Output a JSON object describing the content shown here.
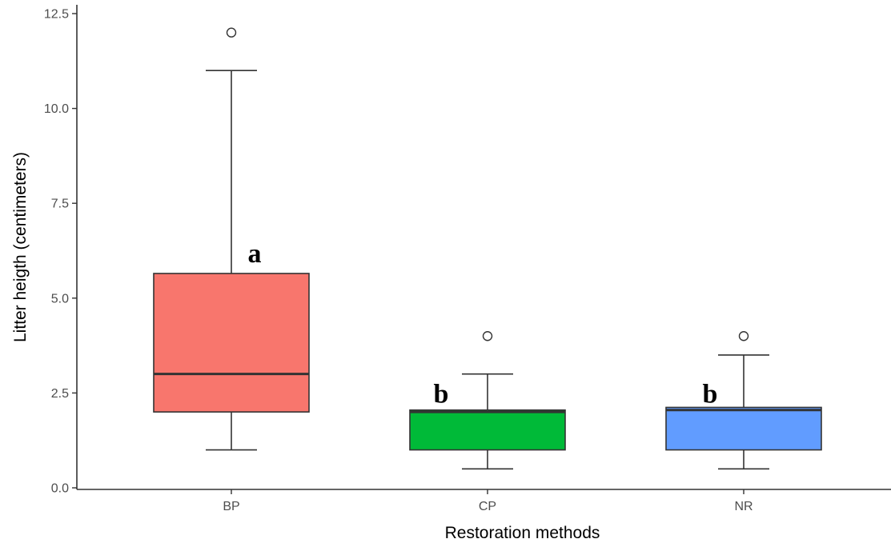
{
  "chart_data": {
    "type": "box",
    "xlabel": "Restoration methods",
    "ylabel": "Litter heigth (centimeters)",
    "ylim": [
      0,
      12.5
    ],
    "yticks": [
      "0.0",
      "2.5",
      "5.0",
      "7.5",
      "10.0",
      "12.5"
    ],
    "grid": false,
    "legend": "none",
    "categories": [
      "BP",
      "CP",
      "NR"
    ],
    "boxes": [
      {
        "category": "BP",
        "min": 1.0,
        "q1": 2.0,
        "median": 3.0,
        "q3": 5.65,
        "max": 11.0,
        "outliers": [
          12.0
        ],
        "color": "#F8766D",
        "group_letter": "a"
      },
      {
        "category": "CP",
        "min": 0.5,
        "q1": 1.0,
        "median": 2.0,
        "q3": 2.05,
        "max": 3.0,
        "outliers": [
          4.0
        ],
        "color": "#00BA38",
        "group_letter": "b"
      },
      {
        "category": "NR",
        "min": 0.5,
        "q1": 1.0,
        "median": 2.05,
        "q3": 2.12,
        "max": 3.5,
        "outliers": [
          4.0
        ],
        "color": "#619CFF",
        "group_letter": "b"
      }
    ]
  }
}
